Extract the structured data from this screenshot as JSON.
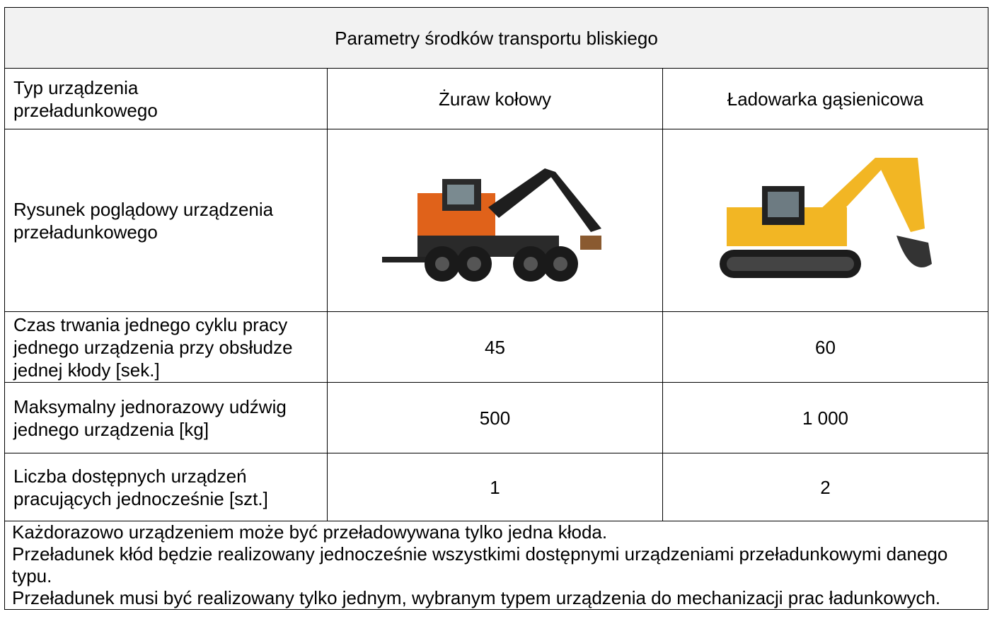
{
  "header": {
    "title": "Parametry środków transportu bliskiego"
  },
  "table": {
    "rows": [
      [
        "Typ urządzenia przeładunkowego",
        "Żuraw kołowy",
        "Ładowarka gąsienicowa"
      ],
      [
        "Rysunek poglądowy urządzenia przeładunkowego"
      ],
      [
        "Czas trwania jednego cyklu pracy jednego urządzenia przy obsłudze jednej kłody [sek.]",
        "45",
        "60"
      ],
      [
        "Maksymalny jednorazowy udźwig jednego urządzenia [kg]",
        "500",
        "1 000"
      ],
      [
        "Liczba dostępnych urządzeń pracujących jednocześnie [szt.]",
        "1",
        "2"
      ]
    ]
  },
  "notes": [
    "Każdorazowo urządzeniem może być przeładowywana tylko jedna kłoda.",
    "Przeładunek kłód będzie realizowany jednocześnie wszystkimi dostępnymi urządzeniami przeładunkowymi danego typu.",
    "Przeładunek musi być realizowany tylko jednym, wybranym typem urządzenia do mechanizacji prac ładunkowych."
  ]
}
